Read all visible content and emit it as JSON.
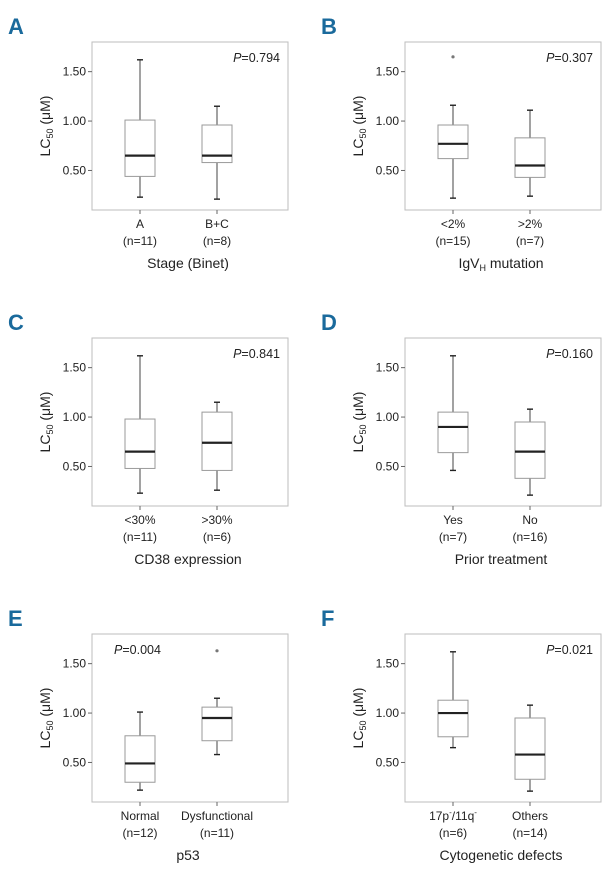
{
  "chart_data": [
    {
      "type": "box",
      "panel_label": "A",
      "p_prefix": "P",
      "p_value": "=0.794",
      "ylabel": "LC",
      "ylabel_sub": "50",
      "ylabel_unit": " (μM)",
      "yticks": [
        "1.50",
        "1.00",
        "0.50"
      ],
      "ylim": [
        0.1,
        1.8
      ],
      "xlabel": "Stage (Binet)",
      "xlabel_sub": "",
      "xlabel_tail": "",
      "groups": [
        {
          "label": "A",
          "label_sup": "",
          "label_mid": "",
          "label_sup2": "",
          "n": "(n=11)",
          "min": 0.23,
          "q1": 0.44,
          "median": 0.65,
          "q3": 1.01,
          "max": 1.62,
          "outliers": []
        },
        {
          "label": "B+C",
          "label_sup": "",
          "label_mid": "",
          "label_sup2": "",
          "n": "(n=8)",
          "min": 0.21,
          "q1": 0.58,
          "median": 0.65,
          "q3": 0.96,
          "max": 1.15,
          "outliers": []
        }
      ]
    },
    {
      "type": "box",
      "panel_label": "B",
      "p_prefix": "P",
      "p_value": "=0.307",
      "ylabel": "LC",
      "ylabel_sub": "50",
      "ylabel_unit": " (μM)",
      "yticks": [
        "1.50",
        "1.00",
        "0.50"
      ],
      "ylim": [
        0.1,
        1.8
      ],
      "xlabel": "IgV",
      "xlabel_sub": "H",
      "xlabel_tail": " mutation",
      "groups": [
        {
          "label": "<2%",
          "label_sup": "",
          "label_mid": "",
          "label_sup2": "",
          "n": "(n=15)",
          "min": 0.22,
          "q1": 0.62,
          "median": 0.77,
          "q3": 0.96,
          "max": 1.16,
          "outliers": [
            1.65
          ]
        },
        {
          "label": ">2%",
          "label_sup": "",
          "label_mid": "",
          "label_sup2": "",
          "n": "(n=7)",
          "min": 0.24,
          "q1": 0.43,
          "median": 0.55,
          "q3": 0.83,
          "max": 1.11,
          "outliers": []
        }
      ]
    },
    {
      "type": "box",
      "panel_label": "C",
      "p_prefix": "P",
      "p_value": "=0.841",
      "ylabel": "LC",
      "ylabel_sub": "50",
      "ylabel_unit": " (μM)",
      "yticks": [
        "1.50",
        "1.00",
        "0.50"
      ],
      "ylim": [
        0.1,
        1.8
      ],
      "xlabel": "CD38 expression",
      "xlabel_sub": "",
      "xlabel_tail": "",
      "groups": [
        {
          "label": "<30%",
          "label_sup": "",
          "label_mid": "",
          "label_sup2": "",
          "n": "(n=11)",
          "min": 0.23,
          "q1": 0.48,
          "median": 0.65,
          "q3": 0.98,
          "max": 1.62,
          "outliers": []
        },
        {
          "label": ">30%",
          "label_sup": "",
          "label_mid": "",
          "label_sup2": "",
          "n": "(n=6)",
          "min": 0.26,
          "q1": 0.46,
          "median": 0.74,
          "q3": 1.05,
          "max": 1.15,
          "outliers": []
        }
      ]
    },
    {
      "type": "box",
      "panel_label": "D",
      "p_prefix": "P",
      "p_value": "=0.160",
      "ylabel": "LC",
      "ylabel_sub": "50",
      "ylabel_unit": " (μM)",
      "yticks": [
        "1.50",
        "1.00",
        "0.50"
      ],
      "ylim": [
        0.1,
        1.8
      ],
      "xlabel": "Prior treatment",
      "xlabel_sub": "",
      "xlabel_tail": "",
      "groups": [
        {
          "label": "Yes",
          "label_sup": "",
          "label_mid": "",
          "label_sup2": "",
          "n": "(n=7)",
          "min": 0.46,
          "q1": 0.64,
          "median": 0.9,
          "q3": 1.05,
          "max": 1.62,
          "outliers": []
        },
        {
          "label": "No",
          "label_sup": "",
          "label_mid": "",
          "label_sup2": "",
          "n": "(n=16)",
          "min": 0.21,
          "q1": 0.38,
          "median": 0.65,
          "q3": 0.95,
          "max": 1.08,
          "outliers": []
        }
      ]
    },
    {
      "type": "box",
      "panel_label": "E",
      "p_prefix": "P",
      "p_value": "=0.004",
      "ylabel": "LC",
      "ylabel_sub": "50",
      "ylabel_unit": " (μM)",
      "yticks": [
        "1.50",
        "1.00",
        "0.50"
      ],
      "ylim": [
        0.1,
        1.8
      ],
      "xlabel": "p53",
      "xlabel_sub": "",
      "xlabel_tail": "",
      "groups": [
        {
          "label": "Normal",
          "label_sup": "",
          "label_mid": "",
          "label_sup2": "",
          "n": "(n=12)",
          "min": 0.22,
          "q1": 0.3,
          "median": 0.49,
          "q3": 0.77,
          "max": 1.01,
          "outliers": []
        },
        {
          "label": "Dysfunctional",
          "label_sup": "",
          "label_mid": "",
          "label_sup2": "",
          "n": "(n=11)",
          "min": 0.58,
          "q1": 0.72,
          "median": 0.95,
          "q3": 1.06,
          "max": 1.15,
          "outliers": [
            1.63
          ]
        }
      ]
    },
    {
      "type": "box",
      "panel_label": "F",
      "p_prefix": "P",
      "p_value": "=0.021",
      "ylabel": "LC",
      "ylabel_sub": "50",
      "ylabel_unit": " (μM)",
      "yticks": [
        "1.50",
        "1.00",
        "0.50"
      ],
      "ylim": [
        0.1,
        1.8
      ],
      "xlabel": "Cytogenetic defects",
      "xlabel_sub": "",
      "xlabel_tail": "",
      "groups": [
        {
          "label": "17p",
          "label_sup": "-",
          "label_mid": "/11q",
          "label_sup2": "-",
          "n": "(n=6)",
          "min": 0.65,
          "q1": 0.76,
          "median": 1.0,
          "q3": 1.13,
          "max": 1.62,
          "outliers": []
        },
        {
          "label": "Others",
          "label_sup": "",
          "label_mid": "",
          "label_sup2": "",
          "n": "(n=14)",
          "min": 0.21,
          "q1": 0.33,
          "median": 0.58,
          "q3": 0.95,
          "max": 1.08,
          "outliers": []
        }
      ]
    }
  ]
}
